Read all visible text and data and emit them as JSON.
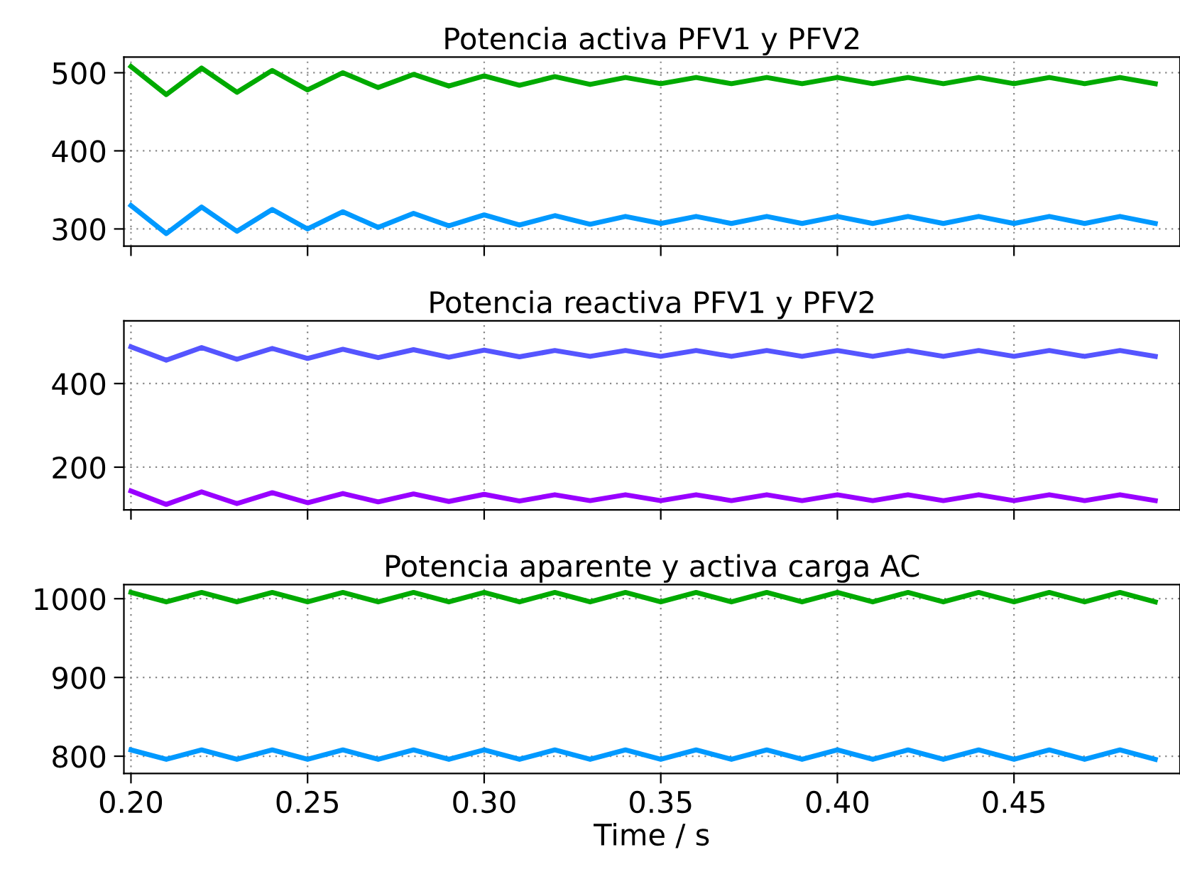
{
  "chart_data": [
    {
      "type": "line",
      "title": "Potencia activa PFV1 y PFV2",
      "x": [
        0.2,
        0.21,
        0.22,
        0.23,
        0.24,
        0.25,
        0.26,
        0.27,
        0.28,
        0.29,
        0.3,
        0.31,
        0.32,
        0.33,
        0.34,
        0.35,
        0.36,
        0.37,
        0.38,
        0.39,
        0.4,
        0.41,
        0.42,
        0.43,
        0.44,
        0.45,
        0.46,
        0.47,
        0.48,
        0.49
      ],
      "series": [
        {
          "color": "#00aa00",
          "values": [
            508,
            472,
            506,
            475,
            503,
            478,
            500,
            481,
            498,
            483,
            496,
            484,
            495,
            485,
            494,
            486,
            494,
            486,
            494,
            486,
            494,
            486,
            494,
            486,
            494,
            486,
            494,
            486,
            494,
            486
          ]
        },
        {
          "color": "#0099ff",
          "values": [
            330,
            294,
            328,
            297,
            325,
            300,
            322,
            302,
            320,
            304,
            318,
            305,
            317,
            306,
            316,
            307,
            316,
            307,
            316,
            307,
            316,
            307,
            316,
            307,
            316,
            307,
            316,
            307,
            316,
            307
          ]
        }
      ],
      "xlim": [
        0.198,
        0.497
      ],
      "xticks": [
        {
          "value": 0.2,
          "label": null
        },
        {
          "value": 0.25,
          "label": null
        },
        {
          "value": 0.3,
          "label": null
        },
        {
          "value": 0.35,
          "label": null
        },
        {
          "value": 0.4,
          "label": null
        },
        {
          "value": 0.45,
          "label": null
        }
      ],
      "ylim": [
        278,
        520
      ],
      "yticks": [
        300,
        400,
        500
      ],
      "grid": true,
      "tick_labels": "y"
    },
    {
      "type": "line",
      "title": "Potencia reactiva PFV1 y PFV2",
      "x": [
        0.2,
        0.21,
        0.22,
        0.23,
        0.24,
        0.25,
        0.26,
        0.27,
        0.28,
        0.29,
        0.3,
        0.31,
        0.32,
        0.33,
        0.34,
        0.35,
        0.36,
        0.37,
        0.38,
        0.39,
        0.4,
        0.41,
        0.42,
        0.43,
        0.44,
        0.45,
        0.46,
        0.47,
        0.48,
        0.49
      ],
      "series": [
        {
          "color": "#5555ff",
          "values": [
            488,
            456,
            486,
            458,
            484,
            460,
            482,
            462,
            481,
            463,
            480,
            464,
            479,
            465,
            479,
            465,
            479,
            465,
            479,
            465,
            479,
            465,
            479,
            465,
            479,
            465,
            479,
            465,
            479,
            465
          ]
        },
        {
          "color": "#9900ff",
          "values": [
            143,
            111,
            141,
            113,
            139,
            115,
            137,
            117,
            136,
            118,
            135,
            119,
            134,
            120,
            134,
            120,
            134,
            120,
            134,
            120,
            134,
            120,
            134,
            120,
            134,
            120,
            134,
            120,
            134,
            120
          ]
        }
      ],
      "xlim": [
        0.198,
        0.497
      ],
      "xticks": [
        {
          "value": 0.2,
          "label": null
        },
        {
          "value": 0.25,
          "label": null
        },
        {
          "value": 0.3,
          "label": null
        },
        {
          "value": 0.35,
          "label": null
        },
        {
          "value": 0.4,
          "label": null
        },
        {
          "value": 0.45,
          "label": null
        }
      ],
      "ylim": [
        98,
        550
      ],
      "yticks": [
        200,
        400
      ],
      "grid": true,
      "tick_labels": "y"
    },
    {
      "type": "line",
      "title": "Potencia aparente y activa carga AC",
      "xlabel": "Time / s",
      "x": [
        0.2,
        0.21,
        0.22,
        0.23,
        0.24,
        0.25,
        0.26,
        0.27,
        0.28,
        0.29,
        0.3,
        0.31,
        0.32,
        0.33,
        0.34,
        0.35,
        0.36,
        0.37,
        0.38,
        0.39,
        0.4,
        0.41,
        0.42,
        0.43,
        0.44,
        0.45,
        0.46,
        0.47,
        0.48,
        0.49
      ],
      "series": [
        {
          "color": "#00aa00",
          "values": [
            1008,
            996,
            1008,
            996,
            1008,
            996,
            1008,
            996,
            1008,
            996,
            1008,
            996,
            1008,
            996,
            1008,
            996,
            1008,
            996,
            1008,
            996,
            1008,
            996,
            1008,
            996,
            1008,
            996,
            1008,
            996,
            1008,
            996
          ]
        },
        {
          "color": "#0099ff",
          "values": [
            808,
            796,
            808,
            796,
            808,
            796,
            808,
            796,
            808,
            796,
            808,
            796,
            808,
            796,
            808,
            796,
            808,
            796,
            808,
            796,
            808,
            796,
            808,
            796,
            808,
            796,
            808,
            796,
            808,
            796
          ]
        }
      ],
      "xlim": [
        0.198,
        0.497
      ],
      "xticks": [
        {
          "value": 0.2,
          "label": "0.20"
        },
        {
          "value": 0.25,
          "label": "0.25"
        },
        {
          "value": 0.3,
          "label": "0.30"
        },
        {
          "value": 0.35,
          "label": "0.35"
        },
        {
          "value": 0.4,
          "label": "0.40"
        },
        {
          "value": 0.45,
          "label": "0.45"
        }
      ],
      "ylim": [
        778,
        1018
      ],
      "yticks": [
        800,
        900,
        1000
      ],
      "grid": true
    }
  ]
}
